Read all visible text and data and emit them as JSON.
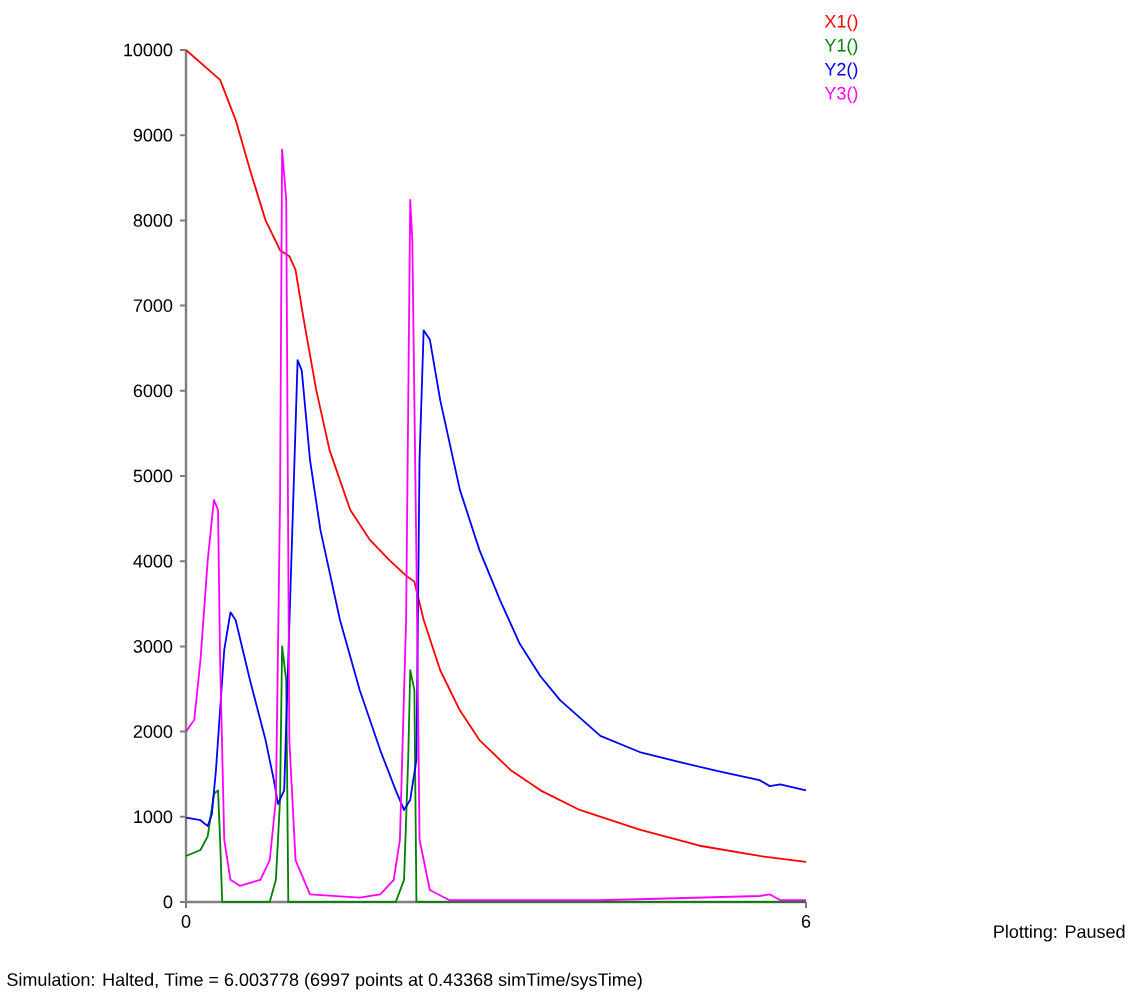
{
  "chart_data": {
    "type": "line",
    "xlim": [
      0,
      6
    ],
    "ylim": [
      0,
      10000
    ],
    "xticks": [
      0,
      6
    ],
    "yticks": [
      0,
      1000,
      2000,
      3000,
      4000,
      5000,
      6000,
      7000,
      8000,
      9000,
      10000
    ],
    "grid": false,
    "legend": "top right",
    "marker": "none",
    "line_style": "solid",
    "annotations": [
      "Simulation: Halted, Time = 6.003778 (6997 points at 0.43368 simTime/sysTime)",
      "Plotting: Paused"
    ],
    "series": [
      {
        "name": "X1()",
        "color": "#ff0000",
        "x": [
          0,
          0.33,
          0.48,
          0.62,
          0.77,
          0.91,
          1.0,
          1.06,
          1.14,
          1.26,
          1.39,
          1.59,
          1.78,
          1.97,
          2.13,
          2.21,
          2.3,
          2.46,
          2.65,
          2.84,
          3.14,
          3.43,
          3.81,
          4.39,
          4.97,
          5.55,
          6.0
        ],
        "values": [
          10000,
          9650,
          9180,
          8590,
          8000,
          7650,
          7580,
          7420,
          6830,
          6010,
          5300,
          4600,
          4250,
          4010,
          3830,
          3760,
          3310,
          2720,
          2250,
          1900,
          1550,
          1310,
          1080,
          850,
          660,
          540,
          470
        ]
      },
      {
        "name": "Y1()",
        "color": "#008000",
        "x": [
          0,
          0.14,
          0.21,
          0.27,
          0.31,
          0.33,
          0.35,
          0.81,
          0.87,
          0.91,
          0.93,
          0.97,
          0.99,
          2.03,
          2.11,
          2.15,
          2.17,
          2.21,
          2.23,
          6.0
        ],
        "values": [
          540,
          610,
          770,
          1270,
          1310,
          730,
          0,
          0,
          260,
          1200,
          3000,
          2600,
          0,
          0,
          260,
          1670,
          2720,
          2490,
          0,
          0
        ]
      },
      {
        "name": "Y2()",
        "color": "#0000ff",
        "x": [
          0,
          0.14,
          0.21,
          0.25,
          0.29,
          0.37,
          0.43,
          0.48,
          0.62,
          0.77,
          0.85,
          0.89,
          0.95,
          1.0,
          1.05,
          1.08,
          1.12,
          1.2,
          1.3,
          1.49,
          1.68,
          1.88,
          2.03,
          2.11,
          2.17,
          2.23,
          2.26,
          2.3,
          2.36,
          2.46,
          2.65,
          2.84,
          3.04,
          3.23,
          3.43,
          3.62,
          4.01,
          4.39,
          4.78,
          5.17,
          5.55,
          5.65,
          5.75,
          6.0
        ],
        "values": [
          990,
          960,
          890,
          1030,
          1550,
          2960,
          3400,
          3310,
          2600,
          1900,
          1430,
          1150,
          1310,
          null,
          5190,
          6360,
          6240,
          5190,
          4370,
          3310,
          2490,
          1780,
          1310,
          1080,
          1200,
          1670,
          5190,
          6710,
          6600,
          5890,
          4840,
          4130,
          3540,
          3030,
          2650,
          2370,
          1950,
          1760,
          1640,
          1530,
          1430,
          1360,
          1380,
          1310
        ]
      },
      {
        "name": "Y3()",
        "color": "#ff00ff",
        "x": [
          0,
          0.08,
          0.14,
          0.21,
          0.27,
          0.31,
          0.33,
          0.37,
          0.43,
          0.52,
          0.72,
          0.81,
          0.87,
          0.91,
          0.93,
          0.97,
          1.0,
          1.06,
          1.2,
          1.68,
          1.88,
          2.01,
          2.07,
          2.13,
          2.17,
          2.19,
          2.23,
          2.26,
          2.36,
          2.55,
          4.01,
          5.55,
          5.65,
          5.75,
          6.0
        ],
        "values": [
          2000,
          2140,
          2840,
          4010,
          4720,
          4600,
          2840,
          730,
          260,
          190,
          260,
          490,
          1200,
          4720,
          8830,
          8240,
          1900,
          490,
          90,
          50,
          90,
          260,
          730,
          3310,
          8240,
          7770,
          4010,
          730,
          140,
          20,
          20,
          70,
          90,
          20,
          20
        ]
      }
    ]
  }
}
